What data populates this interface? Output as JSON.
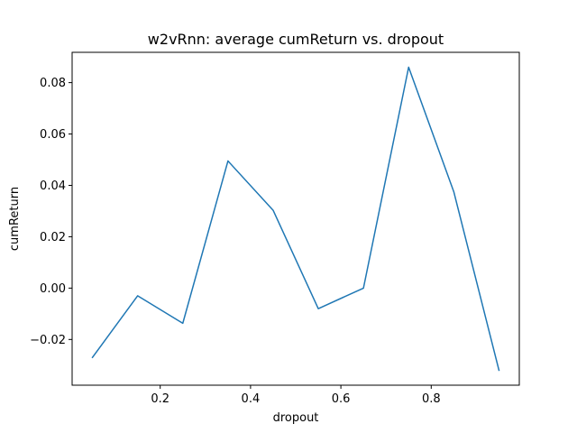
{
  "chart_data": {
    "type": "line",
    "title": "w2vRnn: average cumReturn vs. dropout",
    "xlabel": "dropout",
    "ylabel": "cumReturn",
    "xlim": [
      0.005,
      0.995
    ],
    "ylim": [
      -0.0378,
      0.0918
    ],
    "xticks": [
      0.2,
      0.4,
      0.6,
      0.8
    ],
    "xtick_labels": [
      "0.2",
      "0.4",
      "0.6",
      "0.8"
    ],
    "yticks": [
      -0.02,
      0.0,
      0.02,
      0.04,
      0.06,
      0.08
    ],
    "ytick_labels": [
      "−0.02",
      "0.00",
      "0.02",
      "0.04",
      "0.06",
      "0.08"
    ],
    "grid": false,
    "series": [
      {
        "color": "#1f77b4",
        "x": [
          0.05,
          0.15,
          0.25,
          0.35,
          0.45,
          0.55,
          0.65,
          0.75,
          0.85,
          0.95
        ],
        "y": [
          -0.027,
          -0.003,
          -0.0137,
          0.0495,
          0.0303,
          -0.008,
          0.0,
          0.086,
          0.0375,
          -0.032
        ]
      }
    ]
  }
}
